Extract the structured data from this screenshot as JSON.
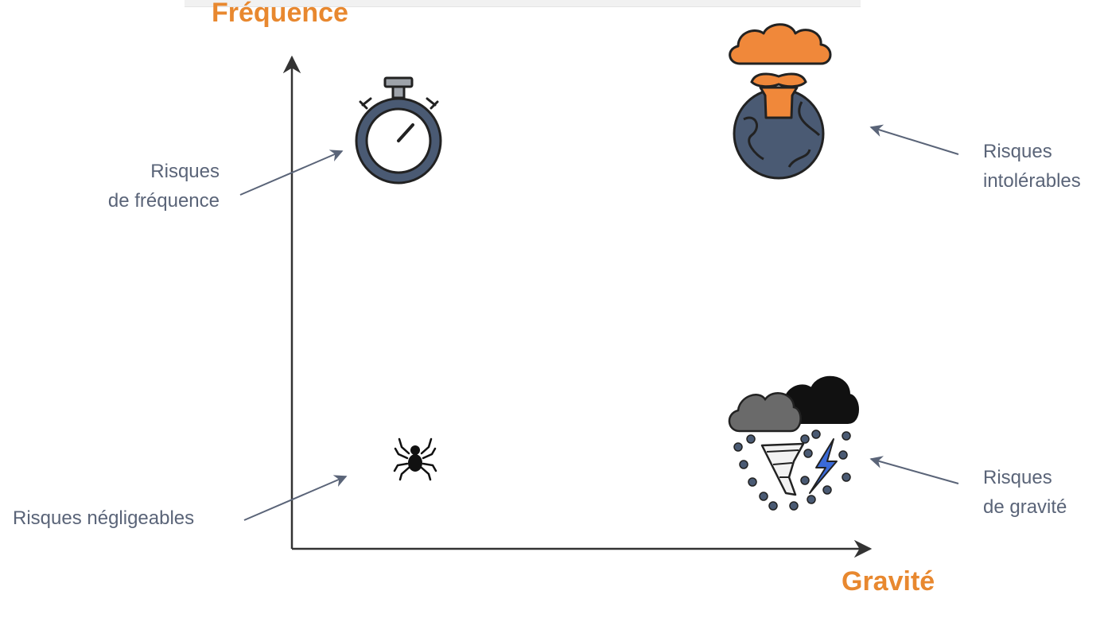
{
  "axes": {
    "y_title": "Fréquence",
    "x_title": "Gravité"
  },
  "labels": {
    "frequency": {
      "line1": "Risques",
      "line2": "de fréquence"
    },
    "intolerable": {
      "line1": "Risques",
      "line2": "intolérables"
    },
    "negligible": "Risques négligeables",
    "gravity": {
      "line1": "Risques",
      "line2": "de gravité"
    }
  },
  "icons": {
    "top_left": "stopwatch-icon",
    "top_right": "mushroom-cloud-earth-icon",
    "bottom_left": "spider-icon",
    "bottom_right": "storm-tornado-icon"
  },
  "colors": {
    "accent_orange": "#e8882f",
    "label_gray": "#5a6478",
    "axis": "#333333",
    "icon_slate": "#4a5a73"
  }
}
